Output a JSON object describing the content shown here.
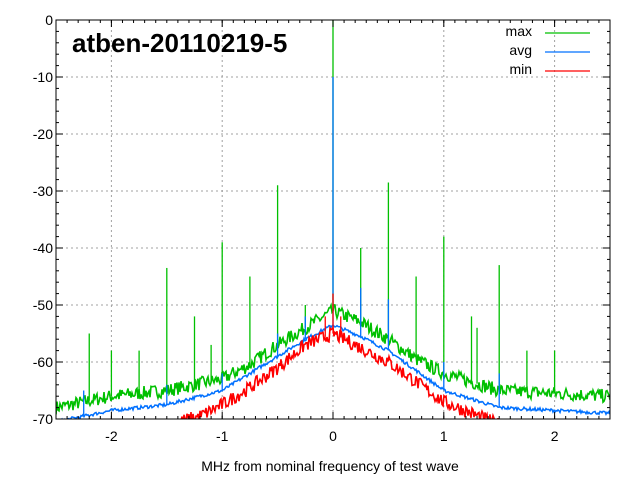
{
  "chart_data": {
    "type": "line",
    "title": "atben-20110219-5",
    "xlabel": "MHz from nominal frequency of test wave",
    "ylabel": "",
    "xlim": [
      -2.5,
      2.5
    ],
    "ylim": [
      -70,
      0
    ],
    "xticks": [
      -2,
      -1,
      0,
      1,
      2
    ],
    "yticks": [
      0,
      -10,
      -20,
      -30,
      -40,
      -50,
      -60,
      -70
    ],
    "grid": true,
    "legend": "top-right",
    "series": [
      {
        "name": "max",
        "color": "#00c000",
        "x": [
          -2.5,
          -2,
          -1.5,
          -1,
          -0.75,
          -0.5,
          -0.25,
          0,
          0.25,
          0.5,
          0.75,
          1,
          1.5,
          2,
          2.5
        ],
        "y": [
          -68,
          -66,
          -65,
          -63,
          -60.5,
          -57,
          -54,
          -51,
          -53,
          -56,
          -59.5,
          -62,
          -65,
          -65.5,
          -66
        ],
        "spikes": [
          [
            0,
            0
          ],
          [
            -0.5,
            -29
          ],
          [
            0.5,
            -28.5
          ],
          [
            -1,
            -39
          ],
          [
            1,
            -38
          ],
          [
            -1.5,
            -43.5
          ],
          [
            1.5,
            -43
          ],
          [
            -0.75,
            -45
          ],
          [
            0.75,
            -45
          ],
          [
            0.25,
            -40
          ],
          [
            -0.25,
            -50
          ],
          [
            -2,
            -58
          ],
          [
            2,
            -58
          ],
          [
            -1.75,
            -58
          ],
          [
            1.75,
            -58
          ],
          [
            -2.2,
            -55
          ],
          [
            -1.25,
            -52
          ],
          [
            1.25,
            -52
          ],
          [
            -1.1,
            -57
          ],
          [
            1.3,
            -54
          ]
        ]
      },
      {
        "name": "avg",
        "color": "#0070ff",
        "x": [
          -2.5,
          -2,
          -1.5,
          -1,
          -0.75,
          -0.5,
          -0.25,
          0,
          0.25,
          0.5,
          0.75,
          1,
          1.5,
          2,
          2.5
        ],
        "y": [
          -70.5,
          -68.5,
          -67.5,
          -65,
          -62,
          -59,
          -56,
          -53.5,
          -55.5,
          -58,
          -61.5,
          -65,
          -68,
          -68.5,
          -69
        ],
        "spikes": [
          [
            0,
            -10
          ],
          [
            0.5,
            -49
          ],
          [
            -0.5,
            -55
          ],
          [
            0.25,
            -47
          ],
          [
            -0.25,
            -52
          ],
          [
            1,
            -60
          ],
          [
            -1,
            -62
          ],
          [
            1.5,
            -62
          ],
          [
            -1.5,
            -64
          ],
          [
            -2.25,
            -65
          ]
        ]
      },
      {
        "name": "min",
        "color": "#ff0000",
        "x": [
          -2.5,
          -1.7,
          -1.2,
          -1,
          -0.75,
          -0.5,
          -0.25,
          0,
          0.25,
          0.5,
          0.75,
          1,
          1.5,
          1.8,
          2.5
        ],
        "y": [
          -75,
          -72,
          -69.5,
          -67.5,
          -64.5,
          -61,
          -57,
          -55,
          -57.5,
          -60,
          -63.5,
          -67,
          -71,
          -73,
          -76
        ],
        "spikes": [
          [
            0,
            -48
          ],
          [
            -0.07,
            -52
          ],
          [
            0.07,
            -52
          ]
        ]
      }
    ]
  }
}
